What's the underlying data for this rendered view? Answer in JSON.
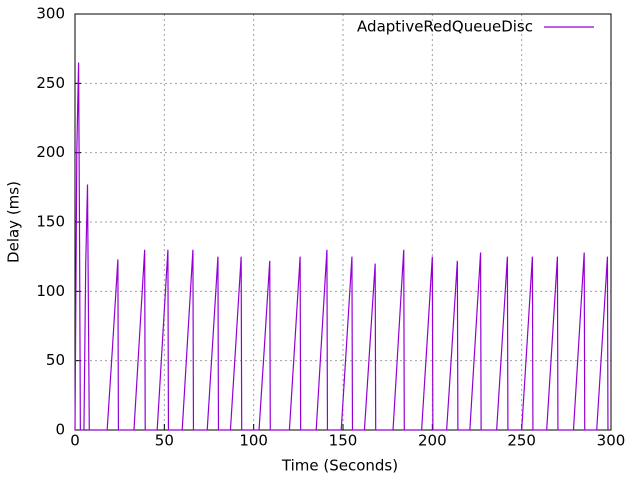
{
  "chart_data": {
    "type": "line",
    "xlabel": "Time (Seconds)",
    "ylabel": "Delay (ms)",
    "x": [
      0,
      1,
      2,
      2.5,
      3,
      5,
      6,
      7,
      8,
      18,
      21,
      24,
      24.3,
      33,
      36,
      39,
      39.3,
      46,
      49,
      52,
      52.3,
      60,
      63,
      66,
      66.3,
      74,
      77,
      80,
      80.3,
      87,
      90,
      93,
      93.3,
      103,
      106,
      109,
      109.3,
      120,
      123,
      126,
      126.3,
      135,
      138,
      141,
      141.3,
      149,
      152,
      155,
      155.3,
      162,
      165,
      168,
      168.3,
      178,
      181,
      184,
      184.3,
      194,
      197,
      200,
      200.3,
      208,
      211,
      214,
      214.3,
      221,
      224,
      227,
      227.3,
      236,
      239,
      242,
      242.3,
      250,
      253,
      256,
      256.3,
      264,
      267,
      270,
      270.3,
      279,
      282,
      285,
      285.3,
      292,
      295,
      298,
      298.3
    ],
    "series": [
      {
        "name": "AdaptiveRedQueueDisc",
        "color": "#9400d3",
        "values": [
          0,
          200,
          265,
          150,
          0,
          0,
          120,
          177,
          0,
          0,
          60,
          123,
          0,
          0,
          65,
          130,
          0,
          0,
          65,
          130,
          0,
          0,
          65,
          130,
          0,
          0,
          62,
          125,
          0,
          0,
          62,
          125,
          0,
          0,
          60,
          122,
          0,
          0,
          62,
          125,
          0,
          0,
          65,
          130,
          0,
          0,
          62,
          125,
          0,
          0,
          60,
          120,
          0,
          0,
          65,
          130,
          0,
          0,
          62,
          125,
          0,
          0,
          60,
          122,
          0,
          0,
          64,
          128,
          0,
          0,
          62,
          125,
          0,
          0,
          62,
          125,
          0,
          0,
          62,
          125,
          0,
          0,
          64,
          128,
          0,
          0,
          62,
          125,
          0
        ]
      }
    ],
    "xlim": [
      0,
      300
    ],
    "xticks": [
      0,
      50,
      100,
      150,
      200,
      250,
      300
    ],
    "ylim": [
      0,
      300
    ],
    "yticks": [
      0,
      50,
      100,
      150,
      200,
      250,
      300
    ],
    "grid": true,
    "legend": "top-right"
  }
}
